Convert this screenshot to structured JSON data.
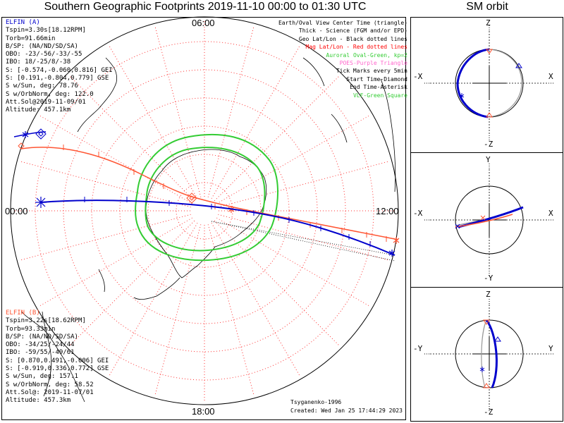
{
  "title": "Southern Geographic Footprints 2019-11-10 00:00 to 01:30 UTC",
  "sm_title": "SM orbit",
  "time_labels": {
    "top": "06:00",
    "left": "00:00",
    "right": "12:00",
    "bottom": "18:00"
  },
  "colors": {
    "elfin_a": "#0000cc",
    "elfin_b": "#ff5533",
    "oval": "#33cc33",
    "grid": "#ff3333",
    "poes": "#ff66cc",
    "vlf": "#33cc33"
  },
  "elfin_a": {
    "name": "ELFIN (A)",
    "lines": [
      "Tspin=3.30s[18.12RPM]",
      "Torb=91.66min",
      "B/SP: (NA/ND/SD/SA)",
      "OBO: -23/-56/-33/-55",
      "IBO: 18/-25/8/-38",
      "S: [-0.574,-0.060,0.816] GEI",
      "S: [0.191,-0.804,0.779] GSE",
      "S w/Sun, deg: 78.76",
      "S w/OrbNorm, deg: 122.0",
      "Att.Sol@2019-11-09/01",
      "Altitude: 457.1km"
    ]
  },
  "elfin_b": {
    "name": "ELFIN (B)",
    "lines": [
      "Tspin=3.22s[18.62RPM]",
      "Torb=93.33min",
      "B/SP: (NA/ND/SD/SA)",
      "OBO: -34/25/-24/44",
      "IBO: -59/55/-49/61",
      "S: [0.870,0.491,-0.006] GEI",
      "S: [-0.919,0.336,0.772] GSE",
      "S w/Sun, deg: 157.1",
      "S w/OrbNorm, deg: 58.52",
      "Att.Sol@: 2019-11-07/01",
      "Altitude: 457.3km"
    ]
  },
  "legend": [
    {
      "text": "Earth/Oval View Center Time (triangle)",
      "color": "#000000"
    },
    {
      "text": "Thick - Science (FGM and/or EPD)",
      "color": "#000000"
    },
    {
      "text": "Geo Lat/Lon - Black dotted lines",
      "color": "#000000"
    },
    {
      "text": "Mag Lat/Lon - Red dotted lines",
      "color": "#ff0000"
    },
    {
      "text": "Auroral Oval-Green, kp=2",
      "color": "#33cc33"
    },
    {
      "text": "POES-Purple Triangle",
      "color": "#ff66cc"
    },
    {
      "text": "Tick Marks every 5min",
      "color": "#000000"
    },
    {
      "text": "Start Time-Diamond",
      "color": "#000000"
    },
    {
      "text": "End Time-Asterisk",
      "color": "#000000"
    },
    {
      "text": "VLF-Green Square",
      "color": "#33cc33"
    }
  ],
  "credit": "Tsyganenko-1996",
  "created": "Created: Wed Jan 25 17:44:29 2023",
  "sm_panels": [
    {
      "top": "Z",
      "bottom": "-Z",
      "left": "-X",
      "right": "X"
    },
    {
      "top": "Y",
      "bottom": "-Y",
      "left": "-X",
      "right": "X"
    },
    {
      "top": "Z",
      "bottom": "-Z",
      "left": "-Y",
      "right": "Y"
    }
  ]
}
